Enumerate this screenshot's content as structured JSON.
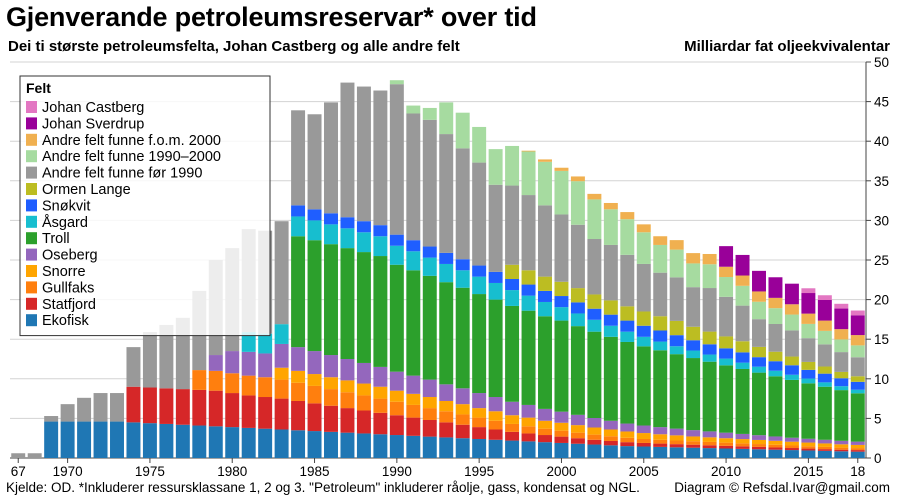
{
  "header": {
    "title": "Gjenverande petroleumsreservar* over tid",
    "subtitle": "Dei ti største petroleumsfelta, Johan Castberg og alle andre felt",
    "unit": "Milliardar fat oljeekvivalentar"
  },
  "footer": {
    "source": "Kjelde: OD. *Inkluderer ressursklassane 1, 2 og 3. \"Petroleum\" inkluderer råolje, gass, kondensat og NGL.",
    "credit": "Diagram © Refsdal.Ivar@gmail.com"
  },
  "chart_data": {
    "type": "bar",
    "stacked": true,
    "title": "Gjenverande petroleumsreservar* over tid",
    "ylabel": "Milliardar fat oljeekvivalentar",
    "ylim": [
      0,
      50
    ],
    "yticks": [
      0,
      5,
      10,
      15,
      20,
      25,
      30,
      35,
      40,
      45,
      50
    ],
    "x_tick_labels": [
      "67",
      "1970",
      "1975",
      "1980",
      "1985",
      "1990",
      "1995",
      "2000",
      "2005",
      "2010",
      "2015",
      "18"
    ],
    "x_tick_years": [
      1967,
      1970,
      1975,
      1980,
      1985,
      1990,
      1995,
      2000,
      2005,
      2010,
      2015,
      2018
    ],
    "grid": true,
    "legend_title": "Felt",
    "legend_position": "top-left",
    "categories": [
      1967,
      1968,
      1969,
      1970,
      1971,
      1972,
      1973,
      1974,
      1975,
      1976,
      1977,
      1978,
      1979,
      1980,
      1981,
      1982,
      1983,
      1984,
      1985,
      1986,
      1987,
      1988,
      1989,
      1990,
      1991,
      1992,
      1993,
      1994,
      1995,
      1996,
      1997,
      1998,
      1999,
      2000,
      2001,
      2002,
      2003,
      2004,
      2005,
      2006,
      2007,
      2008,
      2009,
      2010,
      2011,
      2012,
      2013,
      2014,
      2015,
      2016,
      2017,
      2018
    ],
    "series": [
      {
        "name": "Ekofisk",
        "color": "#1f77b4",
        "values": [
          0,
          0,
          4.6,
          4.6,
          4.6,
          4.6,
          4.6,
          4.5,
          4.4,
          4.3,
          4.2,
          4.1,
          4.0,
          3.9,
          3.8,
          3.7,
          3.6,
          3.5,
          3.4,
          3.3,
          3.2,
          3.1,
          3.0,
          2.9,
          2.8,
          2.7,
          2.6,
          2.5,
          2.4,
          2.3,
          2.2,
          2.1,
          2.0,
          1.9,
          1.8,
          1.7,
          1.6,
          1.5,
          1.45,
          1.4,
          1.35,
          1.3,
          1.25,
          1.2,
          1.15,
          1.1,
          1.05,
          1.0,
          0.95,
          0.9,
          0.85,
          0.8
        ]
      },
      {
        "name": "Statfjord",
        "color": "#d62728",
        "values": [
          0,
          0,
          0,
          0,
          0,
          0,
          0,
          4.5,
          4.5,
          4.5,
          4.5,
          4.5,
          4.5,
          4.3,
          4.1,
          4.0,
          3.9,
          3.7,
          3.5,
          3.3,
          3.1,
          2.9,
          2.7,
          2.5,
          2.3,
          2.1,
          1.9,
          1.7,
          1.5,
          1.3,
          1.1,
          1.0,
          0.9,
          0.8,
          0.7,
          0.6,
          0.55,
          0.5,
          0.45,
          0.42,
          0.4,
          0.38,
          0.36,
          0.34,
          0.32,
          0.3,
          0.28,
          0.26,
          0.24,
          0.22,
          0.2,
          0.2
        ]
      },
      {
        "name": "Gullfaks",
        "color": "#ff7f0e",
        "values": [
          0,
          0,
          0,
          0,
          0,
          0,
          0,
          0,
          0,
          0,
          0,
          2.5,
          2.5,
          2.5,
          2.5,
          2.5,
          2.4,
          2.3,
          2.2,
          2.1,
          2.0,
          1.9,
          1.8,
          1.7,
          1.6,
          1.5,
          1.4,
          1.3,
          1.2,
          1.1,
          1.0,
          0.9,
          0.8,
          0.75,
          0.7,
          0.65,
          0.6,
          0.55,
          0.5,
          0.48,
          0.46,
          0.44,
          0.42,
          0.4,
          0.38,
          0.36,
          0.34,
          0.32,
          0.3,
          0.28,
          0.26,
          0.25
        ]
      },
      {
        "name": "Snorre",
        "color": "#ffa500",
        "values": [
          0,
          0,
          0,
          0,
          0,
          0,
          0,
          0,
          0,
          0,
          0,
          0,
          0,
          0,
          0,
          0,
          1.5,
          1.5,
          1.5,
          1.5,
          1.5,
          1.5,
          1.5,
          1.4,
          1.4,
          1.4,
          1.3,
          1.3,
          1.2,
          1.2,
          1.1,
          1.1,
          1.0,
          1.0,
          0.95,
          0.9,
          0.85,
          0.8,
          0.75,
          0.7,
          0.65,
          0.6,
          0.58,
          0.56,
          0.54,
          0.52,
          0.5,
          0.48,
          0.46,
          0.44,
          0.42,
          0.4
        ]
      },
      {
        "name": "Oseberg",
        "color": "#9467bd",
        "values": [
          0,
          0,
          0,
          0,
          0,
          0,
          0,
          0,
          0,
          0,
          0,
          0,
          2.0,
          2.8,
          3.0,
          3.0,
          3.0,
          3.0,
          2.9,
          2.8,
          2.7,
          2.6,
          2.5,
          2.4,
          2.3,
          2.2,
          2.1,
          2.0,
          1.9,
          1.8,
          1.7,
          1.6,
          1.5,
          1.4,
          1.3,
          1.2,
          1.1,
          1.0,
          0.95,
          0.9,
          0.85,
          0.8,
          0.75,
          0.7,
          0.65,
          0.6,
          0.55,
          0.5,
          0.48,
          0.46,
          0.44,
          0.42
        ]
      },
      {
        "name": "Troll",
        "color": "#2ca02c",
        "values": [
          0,
          0,
          0,
          0,
          0,
          0,
          0,
          0,
          0,
          0,
          0,
          0,
          0,
          0,
          0,
          0,
          0,
          14.0,
          14.0,
          14.0,
          14.0,
          14.0,
          14.0,
          13.5,
          13.3,
          13.1,
          12.9,
          12.7,
          12.5,
          12.3,
          12.1,
          11.9,
          11.7,
          11.5,
          11.2,
          10.9,
          10.6,
          10.3,
          10.0,
          9.7,
          9.4,
          9.1,
          8.8,
          8.5,
          8.2,
          7.9,
          7.6,
          7.3,
          7.0,
          6.7,
          6.4,
          6.1
        ]
      },
      {
        "name": "Åsgard",
        "color": "#17becf",
        "values": [
          0,
          0,
          0,
          0,
          0,
          0,
          0,
          0,
          0,
          0,
          0,
          0,
          0,
          0,
          2.5,
          2.5,
          2.5,
          2.5,
          2.5,
          2.5,
          2.5,
          2.5,
          2.5,
          2.4,
          2.4,
          2.3,
          2.3,
          2.2,
          2.2,
          2.1,
          2.0,
          1.9,
          1.8,
          1.7,
          1.6,
          1.5,
          1.4,
          1.3,
          1.2,
          1.1,
          1.0,
          0.95,
          0.9,
          0.85,
          0.8,
          0.75,
          0.7,
          0.65,
          0.6,
          0.55,
          0.5,
          0.45
        ]
      },
      {
        "name": "Snøkvit",
        "color": "#1f5eff",
        "values": [
          0,
          0,
          0,
          0,
          0,
          0,
          0,
          0,
          0,
          0,
          0,
          0,
          0,
          0,
          0,
          0,
          0,
          1.4,
          1.4,
          1.4,
          1.4,
          1.4,
          1.4,
          1.4,
          1.4,
          1.4,
          1.4,
          1.4,
          1.4,
          1.4,
          1.4,
          1.4,
          1.4,
          1.4,
          1.4,
          1.4,
          1.4,
          1.4,
          1.4,
          1.4,
          1.4,
          1.3,
          1.3,
          1.3,
          1.3,
          1.2,
          1.2,
          1.2,
          1.1,
          1.1,
          1.0,
          1.0
        ]
      },
      {
        "name": "Ormen Lange",
        "color": "#bcbd22",
        "values": [
          0,
          0,
          0,
          0,
          0,
          0,
          0,
          0,
          0,
          0,
          0,
          0,
          0,
          0,
          0,
          0,
          0,
          0,
          0,
          0,
          0,
          0,
          0,
          0,
          0,
          0,
          0,
          0,
          0,
          0,
          1.8,
          1.8,
          1.8,
          1.8,
          1.8,
          1.8,
          1.8,
          1.8,
          1.8,
          1.8,
          1.8,
          1.7,
          1.6,
          1.5,
          1.4,
          1.3,
          1.2,
          1.1,
          1.0,
          0.9,
          0.8,
          0.7
        ]
      },
      {
        "name": "Andre felt funne før 1990",
        "color": "#999999",
        "values": [
          0.6,
          0.6,
          0.7,
          2.2,
          3.0,
          3.6,
          3.6,
          5.0,
          7.0,
          8.0,
          9.0,
          10.0,
          12.0,
          13.0,
          13.0,
          13.0,
          13.0,
          12.0,
          12.0,
          14.0,
          17.0,
          17.0,
          17.0,
          19.0,
          16.0,
          16.0,
          15.0,
          14.0,
          13.0,
          11.0,
          10.0,
          9.5,
          9.0,
          8.5,
          8.0,
          7.0,
          7.0,
          6.5,
          6.0,
          5.5,
          5.5,
          5.0,
          5.5,
          5.0,
          4.5,
          3.5,
          3.5,
          3.3,
          3.0,
          2.8,
          2.5,
          2.4
        ]
      },
      {
        "name": "Andre felt funne 1990–2000",
        "color": "#a6dba0",
        "values": [
          0,
          0,
          0,
          0,
          0,
          0,
          0,
          0,
          0,
          0,
          0,
          0,
          0,
          0,
          0,
          0,
          0,
          0,
          0,
          0,
          0,
          0,
          0,
          0.5,
          1.0,
          1.5,
          4.0,
          4.5,
          4.5,
          4.5,
          5.0,
          5.5,
          5.5,
          5.5,
          5.5,
          5.0,
          4.5,
          4.5,
          4.0,
          3.5,
          3.5,
          3.0,
          3.0,
          2.5,
          2.5,
          2.2,
          2.0,
          2.0,
          1.8,
          1.7,
          1.6,
          1.5
        ]
      },
      {
        "name": "Andre felt funne f.o.m. 2000",
        "color": "#f0b050",
        "values": [
          0,
          0,
          0,
          0,
          0,
          0,
          0,
          0,
          0,
          0,
          0,
          0,
          0,
          0,
          0,
          0,
          0,
          0,
          0,
          0,
          0,
          0,
          0,
          0,
          0,
          0,
          0,
          0,
          0,
          0,
          0,
          0.1,
          0.3,
          0.4,
          0.6,
          0.7,
          0.8,
          0.9,
          1.0,
          1.1,
          1.2,
          1.3,
          1.3,
          1.3,
          1.3,
          1.3,
          1.3,
          1.3,
          1.3,
          1.3,
          1.3,
          1.3
        ]
      },
      {
        "name": "Johan Sverdrup",
        "color": "#990099",
        "values": [
          0,
          0,
          0,
          0,
          0,
          0,
          0,
          0,
          0,
          0,
          0,
          0,
          0,
          0,
          0,
          0,
          0,
          0,
          0,
          0,
          0,
          0,
          0,
          0,
          0,
          0,
          0,
          0,
          0,
          0,
          0,
          0,
          0,
          0,
          0,
          0,
          0,
          0,
          0,
          0,
          0,
          0,
          0,
          2.6,
          2.6,
          2.6,
          2.6,
          2.6,
          2.6,
          2.6,
          2.6,
          2.5
        ]
      },
      {
        "name": "Johan Castberg",
        "color": "#e377c2",
        "values": [
          0,
          0,
          0,
          0,
          0,
          0,
          0,
          0,
          0,
          0,
          0,
          0,
          0,
          0,
          0,
          0,
          0,
          0,
          0,
          0,
          0,
          0,
          0,
          0,
          0,
          0,
          0,
          0,
          0,
          0,
          0,
          0,
          0,
          0,
          0,
          0,
          0,
          0,
          0,
          0,
          0,
          0,
          0,
          0,
          0,
          0,
          0,
          0,
          0.6,
          0.6,
          0.6,
          0.6
        ]
      }
    ]
  }
}
